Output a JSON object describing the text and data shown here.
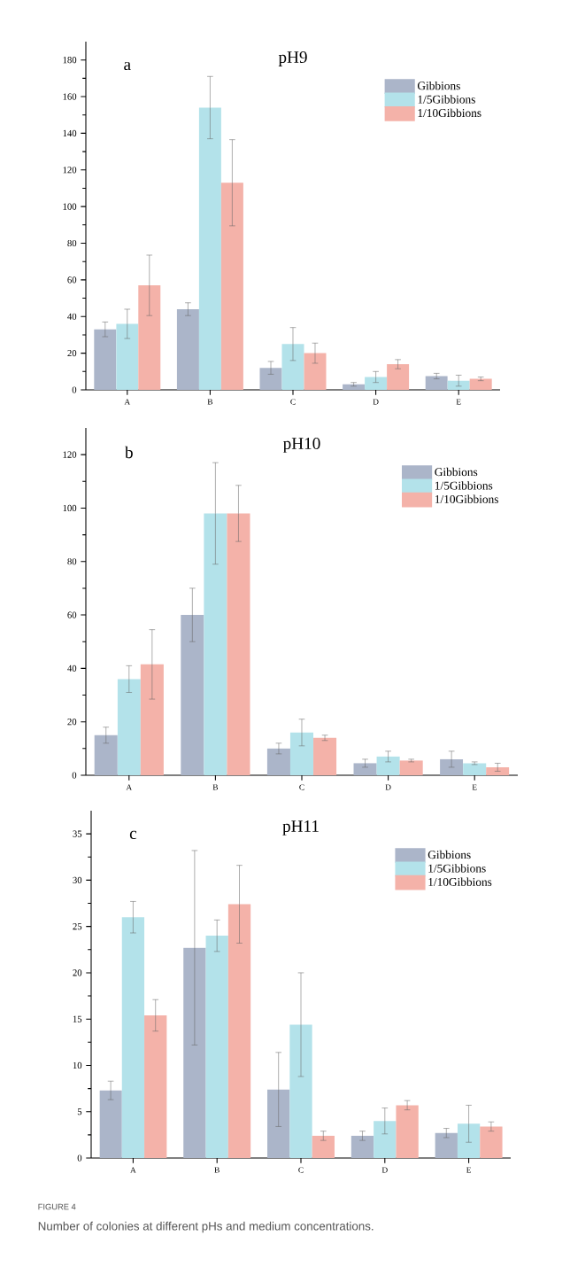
{
  "chart_data": [
    {
      "type": "bar",
      "title": "pH9",
      "categories": [
        "A",
        "B",
        "C",
        "D",
        "E"
      ],
      "series": [
        {
          "name": "Gibbions",
          "color": "#abb5c9",
          "values": [
            33,
            44,
            12,
            3,
            7.5
          ],
          "errors": [
            4,
            3.5,
            3.5,
            1,
            1.5
          ]
        },
        {
          "name": "1/5Gibbions",
          "color": "#b3e2ea",
          "values": [
            36,
            154,
            25,
            7,
            5
          ],
          "errors": [
            8,
            17,
            9,
            3,
            3
          ]
        },
        {
          "name": "1/10Gibbions",
          "color": "#f4b2a9",
          "values": [
            57,
            113,
            20,
            14,
            6
          ],
          "errors": [
            16.5,
            23.5,
            5.5,
            2.5,
            1
          ]
        }
      ],
      "ylim": [
        0,
        190
      ],
      "yticks": [
        0,
        20,
        40,
        60,
        80,
        100,
        120,
        140,
        160,
        180
      ],
      "legend": "top right",
      "annotations": [
        "a"
      ]
    },
    {
      "type": "bar",
      "title": "pH10",
      "categories": [
        "A",
        "B",
        "C",
        "D",
        "E"
      ],
      "series": [
        {
          "name": "Gibbions",
          "color": "#abb5c9",
          "values": [
            15,
            60,
            10,
            4.5,
            6
          ],
          "errors": [
            3,
            10,
            2,
            1.5,
            3
          ]
        },
        {
          "name": "1/5Gibbions",
          "color": "#b3e2ea",
          "values": [
            36,
            98,
            16,
            7,
            4.5
          ],
          "errors": [
            5,
            19,
            5,
            2,
            0.5
          ]
        },
        {
          "name": "1/10Gibbions",
          "color": "#f4b2a9",
          "values": [
            41.5,
            98,
            14,
            5.5,
            3
          ],
          "errors": [
            13,
            10.5,
            1,
            0.5,
            1.5
          ]
        }
      ],
      "ylim": [
        0,
        130
      ],
      "yticks": [
        0,
        20,
        40,
        60,
        80,
        100,
        120
      ],
      "legend": "top right",
      "annotations": [
        "b"
      ]
    },
    {
      "type": "bar",
      "title": "pH11",
      "categories": [
        "A",
        "B",
        "C",
        "D",
        "E"
      ],
      "series": [
        {
          "name": "Gibbions",
          "color": "#abb5c9",
          "values": [
            7.3,
            22.7,
            7.4,
            2.4,
            2.7
          ],
          "errors": [
            1,
            10.5,
            4,
            0.5,
            0.5
          ]
        },
        {
          "name": "1/5Gibbions",
          "color": "#b3e2ea",
          "values": [
            26,
            24,
            14.4,
            4,
            3.7
          ],
          "errors": [
            1.7,
            1.7,
            5.6,
            1.4,
            2
          ]
        },
        {
          "name": "1/10Gibbions",
          "color": "#f4b2a9",
          "values": [
            15.4,
            27.4,
            2.4,
            5.7,
            3.4
          ],
          "errors": [
            1.7,
            4.2,
            0.5,
            0.5,
            0.5
          ]
        }
      ],
      "ylim": [
        0,
        37.5
      ],
      "yticks": [
        0,
        5,
        10,
        15,
        20,
        25,
        30,
        35
      ],
      "legend": "top right",
      "annotations": [
        "c",
        "FIGURE 4",
        "Number of colonies at different pHs and medium concentrations."
      ]
    }
  ]
}
